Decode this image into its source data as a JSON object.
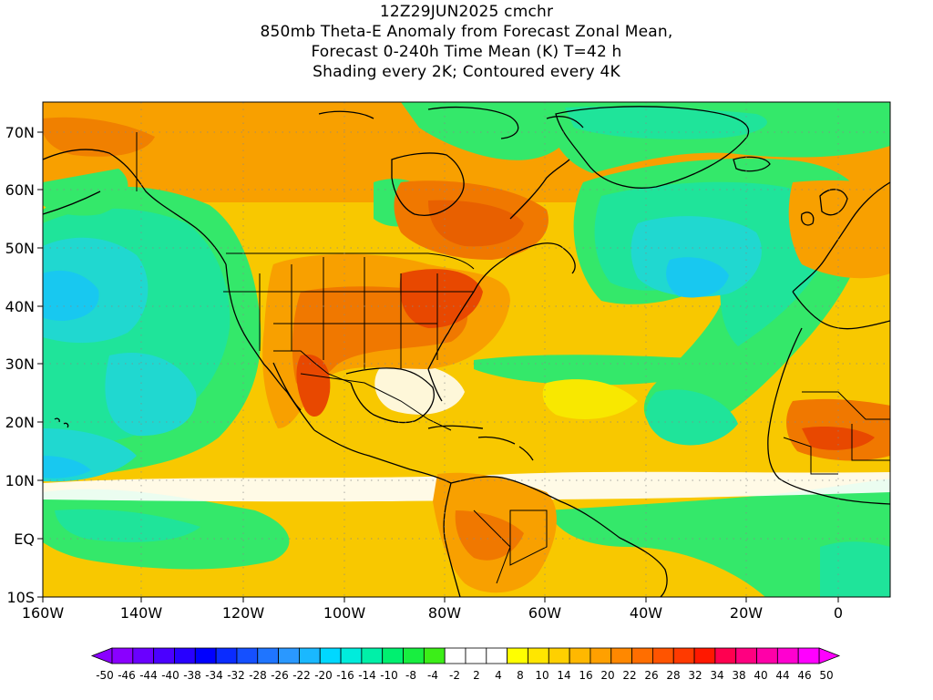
{
  "title": {
    "line1": "12Z29JUN2025 cmchr",
    "line2": "850mb Theta-E Anomaly from Forecast Zonal Mean,",
    "line3": "Forecast 0-240h Time Mean (K) T=42 h",
    "line4": "Shading every 2K; Contoured every 4K"
  },
  "axes": {
    "y_labels": [
      "70N",
      "60N",
      "50N",
      "40N",
      "30N",
      "20N",
      "10N",
      "EQ",
      "10S"
    ],
    "x_labels": [
      "160W",
      "140W",
      "120W",
      "100W",
      "80W",
      "60W",
      "40W",
      "20W",
      "0"
    ]
  },
  "colorbar": {
    "labels": [
      "-50",
      "-46",
      "-44",
      "-40",
      "-38",
      "-34",
      "-32",
      "-28",
      "-26",
      "-22",
      "-20",
      "-16",
      "-14",
      "-10",
      "-8",
      "-4",
      "-2",
      "2",
      "4",
      "8",
      "10",
      "14",
      "16",
      "20",
      "22",
      "26",
      "28",
      "32",
      "34",
      "38",
      "40",
      "44",
      "46",
      "50"
    ],
    "colors": [
      "#8a00ff",
      "#6a00ff",
      "#4b00ff",
      "#2800ff",
      "#0000ff",
      "#0a2cff",
      "#1550ff",
      "#1f75ff",
      "#2a98ff",
      "#1ab8ff",
      "#00d8ff",
      "#00ecdc",
      "#00f0a8",
      "#00f070",
      "#18ee40",
      "#3cee18",
      "#ffffff",
      "#ffffff",
      "#ffffff",
      "#ffff00",
      "#ffe600",
      "#ffd000",
      "#ffb800",
      "#ffa000",
      "#ff8800",
      "#ff6e00",
      "#ff5400",
      "#ff3a00",
      "#ff1800",
      "#ff0050",
      "#ff0080",
      "#ff00a8",
      "#ff00d0",
      "#ff00ff"
    ]
  },
  "colors": {
    "cold_sea": "#1fe49a",
    "cool_sea": "#34e86a",
    "blue_core": "#18c8f0",
    "neutral": "#ffffff",
    "mild": "#f8e800",
    "warm": "#f8b000",
    "hot": "#f07800",
    "hotter": "#e84800",
    "coast": "#000000"
  }
}
